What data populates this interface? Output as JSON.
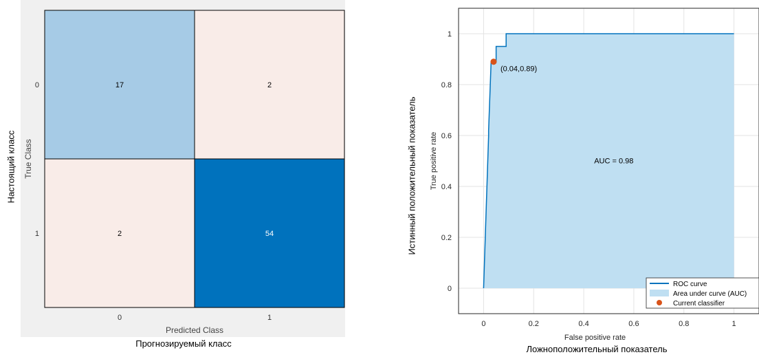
{
  "confusion_matrix": {
    "outer_xlabel": "Прогнозируемый класс",
    "outer_ylabel": "Настоящий класс",
    "chart_data": {
      "type": "heatmap",
      "title": "",
      "xlabel": "Predicted Class",
      "ylabel": "True Class",
      "x_categories": [
        "0",
        "1"
      ],
      "y_categories": [
        "0",
        "1"
      ],
      "values": [
        [
          17,
          2
        ],
        [
          2,
          54
        ]
      ],
      "colors": {
        "high": "#0072bd",
        "mid": "#a6cbe6",
        "low": "#f9ece8"
      }
    }
  },
  "roc": {
    "outer_xlabel": "Ложноположительный показатель",
    "outer_ylabel": "Истинный положительный показатель",
    "chart_data": {
      "type": "line",
      "title": "",
      "xlabel": "False positive rate",
      "ylabel": "True positive rate",
      "xlim": [
        -0.1,
        1.1
      ],
      "ylim": [
        -0.1,
        1.1
      ],
      "xticks": [
        "0",
        "0.2",
        "0.4",
        "0.6",
        "0.8",
        "1"
      ],
      "yticks": [
        "0",
        "0.2",
        "0.4",
        "0.6",
        "0.8",
        "1"
      ],
      "grid": true,
      "series": [
        {
          "name": "ROC curve",
          "x": [
            0,
            0.02,
            0.02,
            0.03,
            0.03,
            0.05,
            0.05,
            0.09,
            0.09,
            1
          ],
          "y": [
            0,
            0.6,
            0.62,
            0.89,
            0.89,
            0.89,
            0.95,
            0.95,
            1.0,
            1.0
          ]
        }
      ],
      "auc_area_label": "Area under curve (AUC)",
      "auc_text": "AUC = 0.98",
      "current_classifier": {
        "name": "Current classifier",
        "x": 0.04,
        "y": 0.89,
        "label": "(0.04,0.89)"
      },
      "legend_placement": "bottom-right",
      "colors": {
        "line": "#0072bd",
        "area": "#bfdff2",
        "point": "#d95319",
        "grid": "#e3e3e3"
      }
    }
  }
}
